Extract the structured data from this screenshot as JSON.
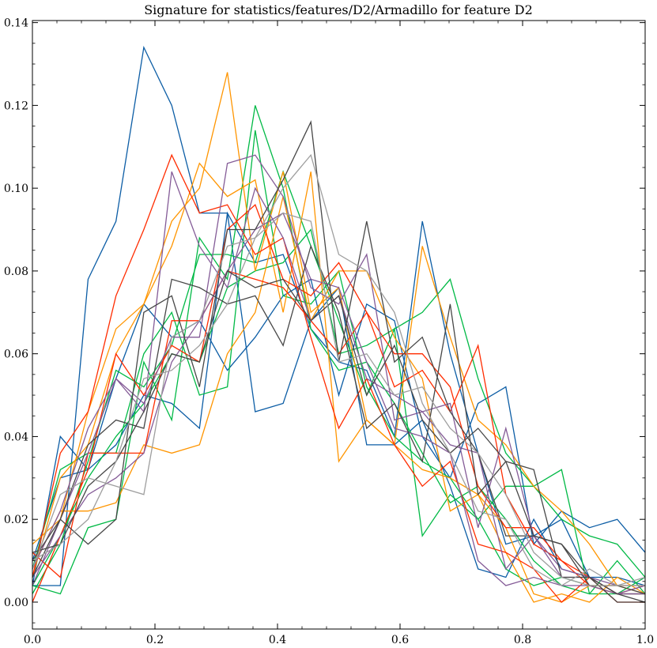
{
  "chart_data": {
    "type": "line",
    "title": "Signature for statistics/features/D2/Armadillo for feature D2",
    "xlabel": "",
    "ylabel": "",
    "xlim": [
      0,
      1
    ],
    "ylim": [
      -0.0065,
      0.1405
    ],
    "x_ticks": [
      "0.0",
      "0.2",
      "0.4",
      "0.6",
      "0.8",
      "1.0"
    ],
    "y_ticks": [
      "0.00",
      "0.02",
      "0.04",
      "0.06",
      "0.08",
      "0.10",
      "0.12",
      "0.14"
    ],
    "grid": false,
    "x": [
      0,
      0.0455,
      0.0909,
      0.1364,
      0.1818,
      0.2273,
      0.2727,
      0.3182,
      0.3636,
      0.4091,
      0.4545,
      0.5,
      0.5455,
      0.5909,
      0.6364,
      0.6818,
      0.7273,
      0.7727,
      0.8182,
      0.8636,
      0.9091,
      0.9545,
      1.0
    ],
    "series": [
      {
        "color": "#0C5DA5",
        "values": [
          0.004,
          0.04,
          0.032,
          0.054,
          0.072,
          0.064,
          0.068,
          0.056,
          0.064,
          0.074,
          0.078,
          0.05,
          0.072,
          0.068,
          0.04,
          0.03,
          0.048,
          0.052,
          0.014,
          0.022,
          0.018,
          0.02,
          0.012
        ]
      },
      {
        "color": "#0C5DA5",
        "values": [
          0.004,
          0.004,
          0.078,
          0.092,
          0.134,
          0.12,
          0.094,
          0.094,
          0.046,
          0.048,
          0.068,
          0.076,
          0.038,
          0.038,
          0.044,
          0.028,
          0.008,
          0.006,
          0.02,
          0.008,
          0.006,
          0.002,
          0.002
        ]
      },
      {
        "color": "#0C5DA5",
        "values": [
          0.01,
          0.03,
          0.032,
          0.038,
          0.05,
          0.048,
          0.042,
          0.094,
          0.082,
          0.084,
          0.066,
          0.058,
          0.056,
          0.04,
          0.092,
          0.06,
          0.036,
          0.014,
          0.016,
          0.02,
          0.006,
          0.006,
          0.004
        ]
      },
      {
        "color": "#00B945",
        "values": [
          0.004,
          0.002,
          0.018,
          0.02,
          0.058,
          0.044,
          0.088,
          0.078,
          0.12,
          0.1,
          0.066,
          0.056,
          0.058,
          0.048,
          0.036,
          0.024,
          0.028,
          0.02,
          0.01,
          0.004,
          0.002,
          0.01,
          0.002
        ]
      },
      {
        "color": "#00B945",
        "values": [
          0.008,
          0.032,
          0.036,
          0.036,
          0.06,
          0.07,
          0.05,
          0.052,
          0.114,
          0.074,
          0.072,
          0.08,
          0.052,
          0.04,
          0.034,
          0.03,
          0.02,
          0.008,
          0.004,
          0.006,
          0.004,
          0.002,
          0.006
        ]
      },
      {
        "color": "#00B945",
        "values": [
          0.004,
          0.016,
          0.03,
          0.04,
          0.048,
          0.06,
          0.058,
          0.076,
          0.08,
          0.082,
          0.09,
          0.06,
          0.062,
          0.066,
          0.07,
          0.078,
          0.054,
          0.036,
          0.028,
          0.032,
          0.002,
          0.002,
          0.002
        ]
      },
      {
        "color": "#00B945",
        "values": [
          0.002,
          0.014,
          0.034,
          0.056,
          0.052,
          0.062,
          0.084,
          0.084,
          0.082,
          0.104,
          0.086,
          0.068,
          0.05,
          0.066,
          0.016,
          0.026,
          0.02,
          0.028,
          0.028,
          0.02,
          0.016,
          0.014,
          0.006
        ]
      },
      {
        "color": "#FF9500",
        "values": [
          0.014,
          0.02,
          0.046,
          0.066,
          0.072,
          0.092,
          0.1,
          0.128,
          0.08,
          0.104,
          0.07,
          0.076,
          0.044,
          0.038,
          0.086,
          0.064,
          0.044,
          0.038,
          0.028,
          0.022,
          0.014,
          0.004,
          0.004
        ]
      },
      {
        "color": "#FF9500",
        "values": [
          0.006,
          0.03,
          0.038,
          0.06,
          0.072,
          0.086,
          0.106,
          0.098,
          0.102,
          0.07,
          0.104,
          0.034,
          0.044,
          0.038,
          0.032,
          0.03,
          0.026,
          0.018,
          0.002,
          0.0,
          0.004,
          0.004,
          0.002
        ]
      },
      {
        "color": "#FF9500",
        "values": [
          0.008,
          0.022,
          0.022,
          0.024,
          0.038,
          0.036,
          0.038,
          0.06,
          0.07,
          0.098,
          0.068,
          0.08,
          0.08,
          0.064,
          0.054,
          0.022,
          0.026,
          0.012,
          0.0,
          0.002,
          0.0,
          0.006,
          0.002
        ]
      },
      {
        "color": "#FF2C00",
        "values": [
          0.006,
          0.036,
          0.046,
          0.074,
          0.09,
          0.108,
          0.094,
          0.096,
          0.084,
          0.088,
          0.064,
          0.042,
          0.054,
          0.038,
          0.028,
          0.034,
          0.014,
          0.012,
          0.008,
          0.0,
          0.006,
          0.0,
          0.0
        ]
      },
      {
        "color": "#FF2C00",
        "values": [
          0.0,
          0.016,
          0.032,
          0.06,
          0.05,
          0.062,
          0.058,
          0.09,
          0.096,
          0.078,
          0.074,
          0.082,
          0.07,
          0.06,
          0.06,
          0.052,
          0.028,
          0.018,
          0.018,
          0.01,
          0.004,
          0.002,
          0.002
        ]
      },
      {
        "color": "#FF2C00",
        "values": [
          0.012,
          0.006,
          0.036,
          0.036,
          0.036,
          0.068,
          0.068,
          0.08,
          0.078,
          0.076,
          0.068,
          0.06,
          0.07,
          0.052,
          0.056,
          0.046,
          0.062,
          0.026,
          0.014,
          0.01,
          0.006,
          0.002,
          0.004
        ]
      },
      {
        "color": "#845B97",
        "values": [
          0.004,
          0.02,
          0.036,
          0.054,
          0.046,
          0.104,
          0.086,
          0.076,
          0.1,
          0.088,
          0.068,
          0.074,
          0.054,
          0.05,
          0.046,
          0.038,
          0.036,
          0.008,
          0.016,
          0.006,
          0.006,
          0.002,
          0.004
        ]
      },
      {
        "color": "#845B97",
        "values": [
          0.008,
          0.022,
          0.042,
          0.054,
          0.048,
          0.064,
          0.064,
          0.106,
          0.108,
          0.098,
          0.076,
          0.072,
          0.084,
          0.044,
          0.046,
          0.048,
          0.018,
          0.042,
          0.016,
          0.008,
          0.006,
          0.004,
          0.004
        ]
      },
      {
        "color": "#845B97",
        "values": [
          0.006,
          0.016,
          0.026,
          0.03,
          0.036,
          0.058,
          0.068,
          0.08,
          0.09,
          0.094,
          0.078,
          0.076,
          0.058,
          0.042,
          0.04,
          0.036,
          0.01,
          0.004,
          0.006,
          0.004,
          0.004,
          0.002,
          0.002
        ]
      },
      {
        "color": "#474747",
        "values": [
          0.006,
          0.02,
          0.014,
          0.02,
          0.07,
          0.074,
          0.052,
          0.09,
          0.09,
          0.102,
          0.116,
          0.058,
          0.092,
          0.058,
          0.064,
          0.046,
          0.036,
          0.016,
          0.016,
          0.014,
          0.006,
          0.0,
          0.0
        ]
      },
      {
        "color": "#474747",
        "values": [
          0.01,
          0.02,
          0.038,
          0.044,
          0.042,
          0.078,
          0.076,
          0.072,
          0.074,
          0.062,
          0.086,
          0.07,
          0.042,
          0.048,
          0.034,
          0.072,
          0.026,
          0.034,
          0.032,
          0.006,
          0.006,
          0.002,
          0.0
        ]
      },
      {
        "color": "#474747",
        "values": [
          0.012,
          0.014,
          0.028,
          0.034,
          0.046,
          0.06,
          0.058,
          0.08,
          0.076,
          0.078,
          0.068,
          0.074,
          0.05,
          0.062,
          0.044,
          0.036,
          0.042,
          0.034,
          0.016,
          0.014,
          0.004,
          0.004,
          0.002
        ]
      },
      {
        "color": "#9E9E9E",
        "values": [
          0.008,
          0.026,
          0.03,
          0.028,
          0.026,
          0.064,
          0.068,
          0.086,
          0.088,
          0.1,
          0.108,
          0.084,
          0.08,
          0.07,
          0.048,
          0.036,
          0.022,
          0.02,
          0.008,
          0.004,
          0.008,
          0.004,
          0.006
        ]
      },
      {
        "color": "#9E9E9E",
        "values": [
          0.01,
          0.014,
          0.02,
          0.034,
          0.054,
          0.056,
          0.062,
          0.072,
          0.088,
          0.094,
          0.092,
          0.058,
          0.06,
          0.05,
          0.052,
          0.042,
          0.036,
          0.026,
          0.012,
          0.006,
          0.004,
          0.004,
          0.004
        ]
      }
    ]
  }
}
